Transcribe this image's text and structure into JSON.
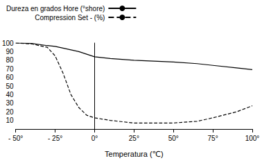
{
  "chart_data": {
    "type": "line",
    "x_label": "Temperatura (℃)",
    "x": [
      -50,
      -40,
      -30,
      -25,
      -20,
      -15,
      -10,
      -5,
      0,
      10,
      25,
      50,
      65,
      75,
      90,
      100
    ],
    "series": [
      {
        "name": "Dureza en grados Hore (°shore)",
        "color": "#000000",
        "line_style": "solid",
        "marker": "none",
        "values": [
          100,
          99.5,
          97,
          96,
          94,
          92,
          90,
          87,
          84,
          82,
          80,
          78,
          76,
          74,
          71,
          69
        ]
      },
      {
        "name": "Compression Set - (%)",
        "color": "#000000",
        "line_style": "dashed",
        "marker": "none",
        "values": [
          100,
          99,
          95,
          85,
          65,
          40,
          25,
          16,
          13,
          10,
          7,
          7,
          9,
          13,
          20,
          27
        ]
      }
    ],
    "xlim": [
      -50,
      100
    ],
    "xticks": [
      {
        "value": -50,
        "label": "- 50°"
      },
      {
        "value": -25,
        "label": "- 25°"
      },
      {
        "value": 0,
        "label": "0°"
      },
      {
        "value": 25,
        "label": "25°"
      },
      {
        "value": 50,
        "label": "50°"
      },
      {
        "value": 75,
        "label": "75°"
      },
      {
        "value": 100,
        "label": "100°"
      }
    ],
    "ylim": [
      0,
      100
    ],
    "yticks": [
      10,
      20,
      30,
      40,
      50,
      60,
      70,
      80,
      90,
      100
    ],
    "grid": false,
    "legend": "top-left"
  }
}
